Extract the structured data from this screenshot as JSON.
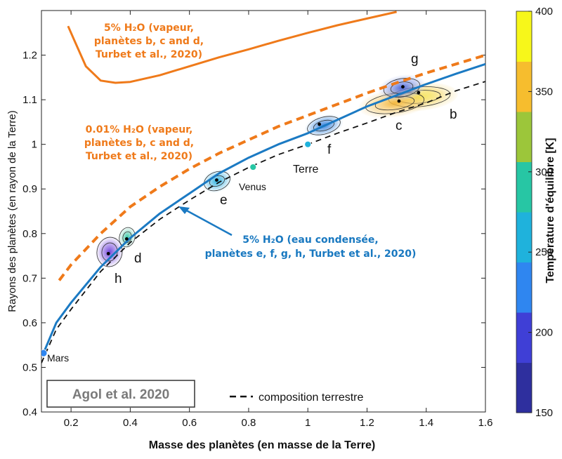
{
  "chart_data": {
    "type": "scatter",
    "title": "",
    "xlabel": "Masse des planètes (en masse de la Terre)",
    "ylabel": "Rayons des planètes (en rayon de la Terre)",
    "xlim": [
      0.1,
      1.6
    ],
    "ylim": [
      0.4,
      1.3
    ],
    "x_ticks": [
      "0.2",
      "0.4",
      "0.6",
      "0.8",
      "1",
      "1.2",
      "1.4",
      "1.6"
    ],
    "y_ticks": [
      "0.4",
      "0.5",
      "0.6",
      "0.7",
      "0.8",
      "0.9",
      "1",
      "1.1",
      "1.2"
    ],
    "grid": false,
    "colorbar": {
      "label": "Température d'équilibre [K]",
      "range": [
        150,
        400
      ],
      "ticks": [
        "150",
        "200",
        "250",
        "300",
        "350",
        "400"
      ],
      "colors": [
        "#2e2f9e",
        "#3f3fd6",
        "#2f86f0",
        "#1fb2dc",
        "#27c6a4",
        "#9cc63a",
        "#f6bd2e",
        "#f7f71a"
      ]
    },
    "planets": [
      {
        "name": "b",
        "mass": 1.374,
        "radius": 1.116,
        "temp": 391,
        "kind": "trappist"
      },
      {
        "name": "c",
        "mass": 1.308,
        "radius": 1.097,
        "temp": 340,
        "kind": "trappist"
      },
      {
        "name": "d",
        "mass": 0.388,
        "radius": 0.788,
        "temp": 288,
        "kind": "trappist"
      },
      {
        "name": "e",
        "mass": 0.692,
        "radius": 0.92,
        "temp": 251,
        "kind": "trappist"
      },
      {
        "name": "f",
        "mass": 1.039,
        "radius": 1.045,
        "temp": 219,
        "kind": "trappist"
      },
      {
        "name": "g",
        "mass": 1.321,
        "radius": 1.129,
        "temp": 199,
        "kind": "trappist"
      },
      {
        "name": "h",
        "mass": 0.326,
        "radius": 0.755,
        "temp": 173,
        "kind": "trappist"
      },
      {
        "name": "Terre",
        "mass": 1.0,
        "radius": 1.0,
        "temp": 255,
        "kind": "solar"
      },
      {
        "name": "Venus",
        "mass": 0.815,
        "radius": 0.949,
        "temp": 300,
        "kind": "solar"
      },
      {
        "name": "Mars",
        "mass": 0.107,
        "radius": 0.532,
        "temp": 215,
        "kind": "solar"
      }
    ],
    "series": [
      {
        "name": "composition terrestre",
        "style": "dashed",
        "color": "#111111",
        "x": [
          0.1,
          0.15,
          0.2,
          0.3,
          0.4,
          0.5,
          0.6,
          0.7,
          0.8,
          0.9,
          1.0,
          1.1,
          1.2,
          1.3,
          1.4,
          1.5,
          1.6
        ],
        "y": [
          0.51,
          0.585,
          0.63,
          0.715,
          0.78,
          0.832,
          0.875,
          0.915,
          0.948,
          0.977,
          1.0,
          1.025,
          1.048,
          1.072,
          1.093,
          1.12,
          1.141
        ]
      },
      {
        "name": "5% H₂O (eau condensée, planètes e, f, g, h, Turbet et al., 2020)",
        "style": "solid",
        "color": "#1b7ac3",
        "x": [
          0.107,
          0.15,
          0.2,
          0.3,
          0.4,
          0.5,
          0.6,
          0.7,
          0.8,
          0.9,
          1.0,
          1.1,
          1.2,
          1.3,
          1.4,
          1.5,
          1.6
        ],
        "y": [
          0.532,
          0.6,
          0.645,
          0.725,
          0.79,
          0.845,
          0.89,
          0.935,
          0.97,
          1.0,
          1.025,
          1.055,
          1.085,
          1.11,
          1.135,
          1.158,
          1.18
        ]
      },
      {
        "name": "0.01% H₂O (vapeur, planètes b, c and d, Turbet et al., 2020)",
        "style": "dashed",
        "color": "#ef7a1a",
        "x": [
          0.16,
          0.2,
          0.3,
          0.4,
          0.5,
          0.6,
          0.7,
          0.8,
          0.9,
          1.0,
          1.1,
          1.2,
          1.3,
          1.4,
          1.5,
          1.6
        ],
        "y": [
          0.695,
          0.73,
          0.8,
          0.86,
          0.905,
          0.945,
          0.98,
          1.01,
          1.04,
          1.065,
          1.09,
          1.115,
          1.138,
          1.16,
          1.18,
          1.2
        ]
      },
      {
        "name": "5% H₂O (vapeur, planètes b, c and d, Turbet et al., 2020)",
        "style": "solid",
        "color": "#ef7a1a",
        "x": [
          0.19,
          0.21,
          0.25,
          0.3,
          0.35,
          0.4,
          0.5,
          0.6,
          0.7,
          0.8,
          0.9,
          1.0,
          1.1,
          1.2,
          1.3
        ],
        "y": [
          1.265,
          1.235,
          1.175,
          1.143,
          1.138,
          1.14,
          1.155,
          1.175,
          1.195,
          1.213,
          1.232,
          1.25,
          1.267,
          1.282,
          1.297
        ]
      }
    ],
    "annotations": {
      "orange_top": [
        "5% H₂O (vapeur,",
        "planètes b, c and d,",
        "Turbet et al., 2020)"
      ],
      "orange_mid": [
        "0.01% H₂O (vapeur,",
        "planètes b, c and d,",
        "Turbet et al., 2020)"
      ],
      "blue": [
        "5% H₂O (eau condensée,",
        "planètes e, f, g, h, Turbet et al., 2020)"
      ],
      "credit": "Agol et al. 2020",
      "legend": "composition terrestre"
    }
  }
}
